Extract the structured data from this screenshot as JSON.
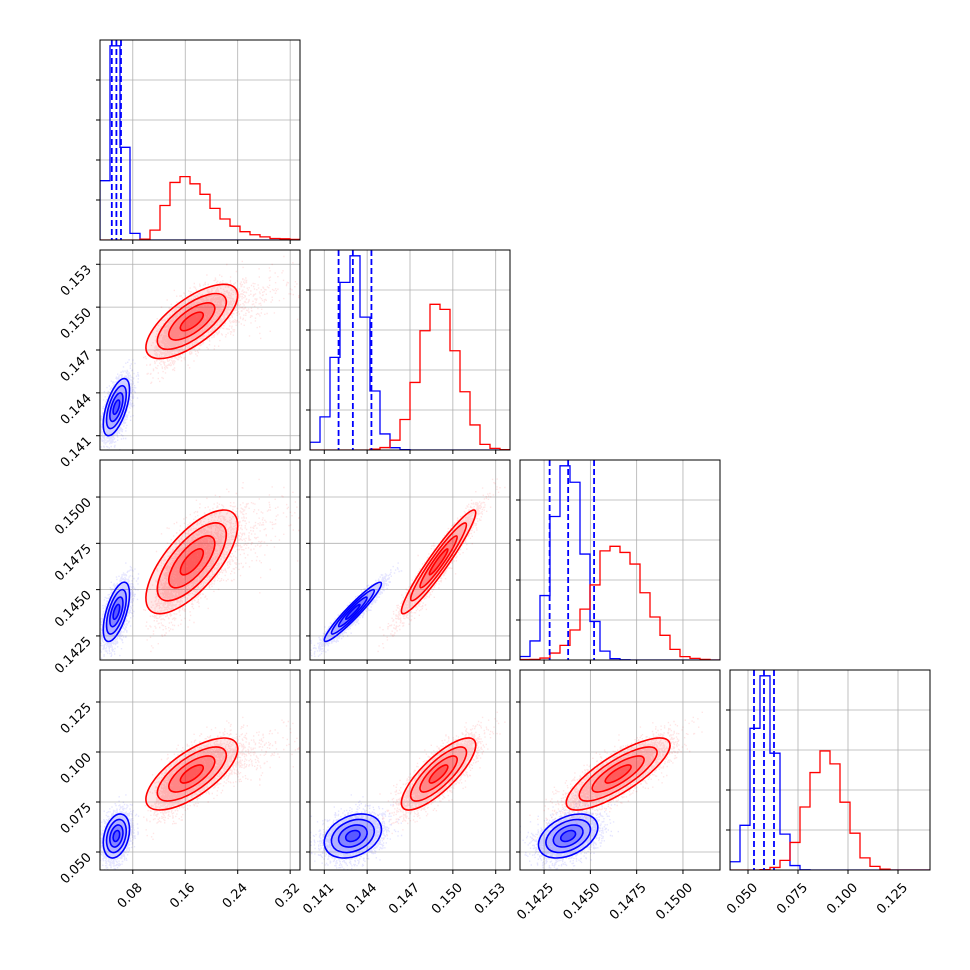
{
  "chart_data": {
    "type": "corner",
    "colors": {
      "blue": "#0000ff",
      "red": "#ff0000"
    },
    "grid": true,
    "params": [
      {
        "range": [
          0.03,
          0.335
        ],
        "ticks": [
          "0.08",
          "0.16",
          "0.24",
          "0.32"
        ],
        "tick_values": [
          0.08,
          0.16,
          0.24,
          0.32
        ]
      },
      {
        "range": [
          0.14,
          0.154
        ],
        "ticks": [
          "0.141",
          "0.144",
          "0.147",
          "0.150",
          "0.153"
        ],
        "tick_values": [
          0.141,
          0.144,
          0.147,
          0.15,
          0.153
        ]
      },
      {
        "range": [
          0.1412,
          0.152
        ],
        "ticks": [
          "0.1425",
          "0.1450",
          "0.1475",
          "0.1500"
        ],
        "tick_values": [
          0.1425,
          0.145,
          0.1475,
          0.15
        ]
      },
      {
        "range": [
          0.041,
          0.141
        ],
        "ticks": [
          "0.050",
          "0.075",
          "0.100",
          "0.125"
        ],
        "tick_values": [
          0.05,
          0.075,
          0.1,
          0.125
        ]
      }
    ],
    "series": [
      {
        "color": "blue",
        "mean": [
          0.055,
          0.143,
          0.1438,
          0.058
        ],
        "std": [
          0.01,
          0.001,
          0.0008,
          0.0055
        ],
        "corr": [
          [
            1,
            0.6,
            0.6,
            0.3
          ],
          [
            0.6,
            1,
            0.95,
            0.3
          ],
          [
            0.6,
            0.95,
            1,
            0.4
          ],
          [
            0.3,
            0.3,
            0.4,
            1
          ]
        ],
        "quantiles": [
          [
            0.048,
            0.055,
            0.062
          ],
          [
            0.142,
            0.143,
            0.1443
          ],
          [
            0.1428,
            0.1438,
            0.1452
          ],
          [
            0.053,
            0.058,
            0.063
          ]
        ]
      },
      {
        "color": "red",
        "mean": [
          0.17,
          0.149,
          0.1465,
          0.089
        ],
        "std": [
          0.035,
          0.0013,
          0.0014,
          0.009
        ],
        "corr": [
          [
            1,
            0.7,
            0.7,
            0.7
          ],
          [
            0.7,
            1,
            0.95,
            0.8
          ],
          [
            0.7,
            0.95,
            1,
            0.8
          ],
          [
            0.7,
            0.8,
            0.8,
            1
          ]
        ],
        "quantiles": null
      }
    ],
    "panels": [
      {
        "row": 0,
        "col": 0,
        "kind": "hist"
      },
      {
        "row": 1,
        "col": 0,
        "kind": "scatter"
      },
      {
        "row": 1,
        "col": 1,
        "kind": "hist"
      },
      {
        "row": 2,
        "col": 0,
        "kind": "scatter"
      },
      {
        "row": 2,
        "col": 1,
        "kind": "scatter"
      },
      {
        "row": 2,
        "col": 2,
        "kind": "hist"
      },
      {
        "row": 3,
        "col": 0,
        "kind": "scatter"
      },
      {
        "row": 3,
        "col": 1,
        "kind": "scatter"
      },
      {
        "row": 3,
        "col": 2,
        "kind": "scatter"
      },
      {
        "row": 3,
        "col": 3,
        "kind": "hist"
      }
    ]
  }
}
